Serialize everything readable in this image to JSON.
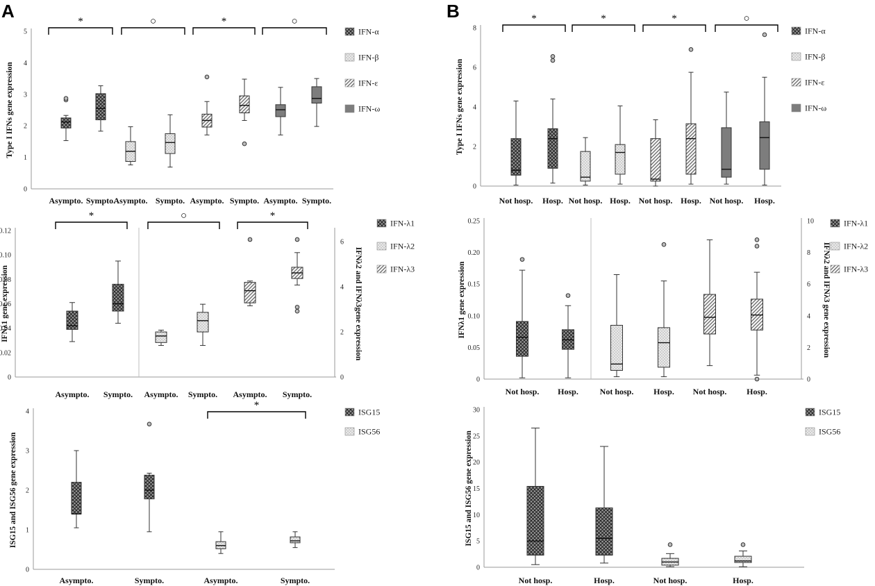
{
  "panel_labels": [
    "A",
    "B"
  ],
  "chart_data": [
    {
      "type": "boxplot",
      "id": "A1",
      "ylabel": "Type I IFNs gene expression",
      "ylim": [
        0,
        5
      ],
      "yticks": [
        0,
        1,
        2,
        3,
        4,
        5
      ],
      "xlabels": [
        "Asympto.",
        "Sympto.",
        "Asympto.",
        "Sympto.",
        "Asympto.",
        "Sympto.",
        "Asympto.",
        "Sympto."
      ],
      "legend": [
        {
          "label": "IFN-α",
          "pattern": "cross"
        },
        {
          "label": "IFN-β",
          "pattern": "dots"
        },
        {
          "label": "IFN-ε",
          "pattern": "diag"
        },
        {
          "label": "IFN-ω",
          "pattern": "solid"
        }
      ],
      "boxes": [
        {
          "pattern": "cross",
          "min": 1.53,
          "q1": 1.93,
          "med": 2.12,
          "q3": 2.25,
          "max": 2.33,
          "out": [
            2.82,
            2.87
          ]
        },
        {
          "pattern": "cross",
          "min": 1.83,
          "q1": 2.19,
          "med": 2.55,
          "q3": 3.02,
          "max": 3.27,
          "out": []
        },
        {
          "pattern": "dots",
          "min": 0.76,
          "q1": 0.87,
          "med": 1.19,
          "q3": 1.5,
          "max": 1.97,
          "out": []
        },
        {
          "pattern": "dots",
          "min": 0.69,
          "q1": 1.12,
          "med": 1.47,
          "q3": 1.75,
          "max": 2.35,
          "out": []
        },
        {
          "pattern": "diag",
          "min": 1.71,
          "q1": 1.96,
          "med": 2.17,
          "q3": 2.37,
          "max": 2.77,
          "out": [
            3.55
          ]
        },
        {
          "pattern": "diag",
          "min": 2.17,
          "q1": 2.41,
          "med": 2.65,
          "q3": 2.95,
          "max": 3.48,
          "out": [
            1.43
          ]
        },
        {
          "pattern": "solid",
          "min": 1.71,
          "q1": 2.29,
          "med": 2.51,
          "q3": 2.67,
          "max": 3.22,
          "out": []
        },
        {
          "pattern": "solid",
          "min": 1.98,
          "q1": 2.72,
          "med": 2.87,
          "q3": 3.24,
          "max": 3.5,
          "out": []
        }
      ],
      "sig": [
        "*",
        "○",
        "*",
        "○"
      ]
    },
    {
      "type": "boxplot",
      "id": "A2",
      "ylabel": "IFNλ1 gene expression",
      "ylabel2": "IFNλ2 and IFNλ3gene expression",
      "ylim": [
        0,
        0.12
      ],
      "yticks": [
        "0",
        "0.02",
        "0.04",
        "0.06",
        "0.08",
        "0.10",
        "0.12"
      ],
      "y2lim": [
        0,
        6.5
      ],
      "y2ticks": [
        0,
        2,
        4,
        6
      ],
      "xlabels": [
        "Asympto.",
        "Sympto.",
        "Asympto.",
        "Sympto.",
        "Asympto.",
        "Sympto."
      ],
      "legend": [
        {
          "label": "IFN-λ1",
          "pattern": "cross"
        },
        {
          "label": "IFN-λ2",
          "pattern": "dots"
        },
        {
          "label": "IFN-λ3",
          "pattern": "diag"
        }
      ],
      "boxes": [
        {
          "pattern": "cross",
          "axis": "left",
          "min": 0.029,
          "q1": 0.039,
          "med": 0.042,
          "q3": 0.054,
          "max": 0.061,
          "out": []
        },
        {
          "pattern": "cross",
          "axis": "left",
          "min": 0.044,
          "q1": 0.054,
          "med": 0.06,
          "q3": 0.076,
          "max": 0.095,
          "out": []
        },
        {
          "pattern": "dots",
          "axis": "right",
          "min": 1.4,
          "q1": 1.53,
          "med": 1.82,
          "q3": 2.0,
          "max": 2.08,
          "out": []
        },
        {
          "pattern": "dots",
          "axis": "right",
          "min": 1.4,
          "q1": 2.0,
          "med": 2.5,
          "q3": 2.87,
          "max": 3.23,
          "out": []
        },
        {
          "pattern": "diag",
          "axis": "right",
          "min": 3.16,
          "q1": 3.29,
          "med": 3.83,
          "q3": 4.2,
          "max": 4.26,
          "out": [
            6.1
          ]
        },
        {
          "pattern": "diag",
          "axis": "right",
          "min": 4.08,
          "q1": 4.37,
          "med": 4.62,
          "q3": 4.87,
          "max": 5.52,
          "out": [
            6.1,
            3.1,
            2.92
          ]
        }
      ],
      "sig": [
        "*",
        "○",
        "*"
      ]
    },
    {
      "type": "boxplot",
      "id": "A3",
      "ylabel": "ISG15 and ISG56 gene expression",
      "ylim": [
        0,
        4
      ],
      "yticks": [
        0,
        1,
        2,
        3,
        4
      ],
      "xlabels": [
        "Asympto.",
        "Sympto.",
        "Asympto.",
        "Sympto."
      ],
      "legend": [
        {
          "label": "ISG15",
          "pattern": "cross"
        },
        {
          "label": "ISG56",
          "pattern": "dots"
        }
      ],
      "boxes": [
        {
          "pattern": "cross",
          "min": 1.05,
          "q1": 1.4,
          "med": 1.4,
          "q3": 2.2,
          "max": 3.0,
          "out": []
        },
        {
          "pattern": "cross",
          "min": 0.95,
          "q1": 1.78,
          "med": 2.0,
          "q3": 2.38,
          "max": 2.43,
          "out": [
            3.67
          ]
        },
        {
          "pattern": "dots",
          "min": 0.4,
          "q1": 0.52,
          "med": 0.6,
          "q3": 0.7,
          "max": 0.95,
          "out": []
        },
        {
          "pattern": "dots",
          "min": 0.55,
          "q1": 0.67,
          "med": 0.72,
          "q3": 0.82,
          "max": 0.95,
          "out": []
        }
      ],
      "sig": [
        "*"
      ]
    },
    {
      "type": "boxplot",
      "id": "B1",
      "ylabel": "Type I IFNs gene expression",
      "ylim": [
        0,
        8
      ],
      "yticks": [
        0,
        2,
        4,
        6,
        8
      ],
      "xlabels": [
        "Not hosp.",
        "Hosp.",
        "Not hosp.",
        "Hosp.",
        "Not hosp.",
        "Hosp.",
        "Not hosp.",
        "Hosp."
      ],
      "legend": [
        {
          "label": "IFN-α",
          "pattern": "cross"
        },
        {
          "label": "IFN-β",
          "pattern": "dots"
        },
        {
          "label": "IFN-ε",
          "pattern": "diag"
        },
        {
          "label": "IFN-ω",
          "pattern": "solid"
        }
      ],
      "boxes": [
        {
          "pattern": "cross",
          "min": 0.05,
          "q1": 0.55,
          "med": 0.8,
          "q3": 2.4,
          "max": 4.3,
          "out": []
        },
        {
          "pattern": "cross",
          "min": 0.15,
          "q1": 0.9,
          "med": 2.4,
          "q3": 2.9,
          "max": 4.4,
          "out": [
            6.35,
            6.55
          ]
        },
        {
          "pattern": "dots",
          "min": 0.05,
          "q1": 0.25,
          "med": 0.45,
          "q3": 1.75,
          "max": 2.45,
          "out": []
        },
        {
          "pattern": "dots",
          "min": 0.1,
          "q1": 0.6,
          "med": 1.7,
          "q3": 2.1,
          "max": 4.05,
          "out": []
        },
        {
          "pattern": "diag",
          "min": 0.0,
          "q1": 0.25,
          "med": 0.35,
          "q3": 2.4,
          "max": 3.35,
          "out": []
        },
        {
          "pattern": "diag",
          "min": 0.1,
          "q1": 0.6,
          "med": 2.4,
          "q3": 3.15,
          "max": 5.75,
          "out": [
            6.9
          ]
        },
        {
          "pattern": "solid",
          "min": 0.1,
          "q1": 0.45,
          "med": 0.85,
          "q3": 2.95,
          "max": 4.75,
          "out": []
        },
        {
          "pattern": "solid",
          "min": 0.05,
          "q1": 0.85,
          "med": 2.45,
          "q3": 3.25,
          "max": 5.5,
          "out": [
            7.65
          ]
        }
      ],
      "sig": [
        "*",
        "*",
        "*",
        "○"
      ]
    },
    {
      "type": "boxplot",
      "id": "B2",
      "ylabel": "IFNλ1 gene expression",
      "ylabel2": "IFNλ2 and IFNλ3 gene expression",
      "ylim": [
        0,
        0.25
      ],
      "yticks": [
        "0",
        "0.05",
        "0.10",
        "0.15",
        "0.20",
        "0.25"
      ],
      "y2lim": [
        0,
        10
      ],
      "y2ticks": [
        0,
        2,
        4,
        6,
        8,
        10
      ],
      "xlabels": [
        "Not hosp.",
        "Hosp.",
        "Not hosp.",
        "Hosp.",
        "Not hosp.",
        "Hosp."
      ],
      "legend": [
        {
          "label": "IFN-λ1",
          "pattern": "cross"
        },
        {
          "label": "IFN-λ2",
          "pattern": "dots"
        },
        {
          "label": "IFN-λ3",
          "pattern": "diag"
        }
      ],
      "boxes": [
        {
          "pattern": "cross",
          "axis": "left",
          "min": 0.002,
          "q1": 0.036,
          "med": 0.066,
          "q3": 0.091,
          "max": 0.172,
          "out": [
            0.189
          ]
        },
        {
          "pattern": "cross",
          "axis": "left",
          "min": 0.002,
          "q1": 0.047,
          "med": 0.062,
          "q3": 0.078,
          "max": 0.116,
          "out": [
            0.132
          ]
        },
        {
          "pattern": "dots",
          "axis": "right",
          "min": 0.15,
          "q1": 0.55,
          "med": 0.95,
          "q3": 3.4,
          "max": 6.6,
          "out": []
        },
        {
          "pattern": "dots",
          "axis": "right",
          "min": 0.15,
          "q1": 0.75,
          "med": 2.3,
          "q3": 3.25,
          "max": 6.2,
          "out": [
            8.5
          ]
        },
        {
          "pattern": "diag",
          "axis": "right",
          "min": 0.85,
          "q1": 2.85,
          "med": 3.9,
          "q3": 5.35,
          "max": 8.8,
          "out": []
        },
        {
          "pattern": "diag",
          "axis": "right",
          "min": 0.25,
          "q1": 3.1,
          "med": 4.05,
          "q3": 5.05,
          "max": 6.75,
          "out": [
            0.0,
            8.4,
            8.8
          ]
        }
      ],
      "sig": []
    },
    {
      "type": "boxplot",
      "id": "B3",
      "ylabel": "ISG15 and ISG56 gene expression",
      "ylim": [
        0,
        30
      ],
      "yticks": [
        0,
        5,
        10,
        15,
        20,
        25,
        30
      ],
      "xlabels": [
        "Not hosp.",
        "Hosp.",
        "Not hosp.",
        "Hosp."
      ],
      "legend": [
        {
          "label": "ISG15",
          "pattern": "cross"
        },
        {
          "label": "ISG56",
          "pattern": "dots"
        }
      ],
      "boxes": [
        {
          "pattern": "cross",
          "min": 0.5,
          "q1": 2.3,
          "med": 5.0,
          "q3": 15.4,
          "max": 26.5,
          "out": []
        },
        {
          "pattern": "cross",
          "min": 0.8,
          "q1": 2.3,
          "med": 5.5,
          "q3": 11.3,
          "max": 23.0,
          "out": []
        },
        {
          "pattern": "dots",
          "min": 0.1,
          "q1": 0.4,
          "med": 1.0,
          "q3": 1.7,
          "max": 2.6,
          "out": [
            4.3
          ]
        },
        {
          "pattern": "dots",
          "min": 0.1,
          "q1": 0.9,
          "med": 1.2,
          "q3": 2.1,
          "max": 3.1,
          "out": [
            4.3
          ]
        }
      ],
      "sig": []
    }
  ]
}
